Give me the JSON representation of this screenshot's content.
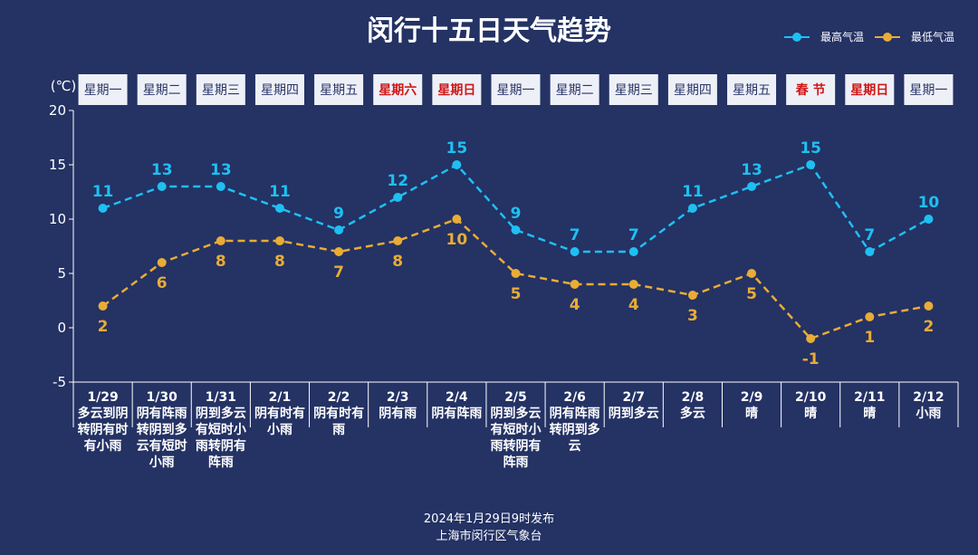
{
  "chart_data": {
    "type": "line",
    "title": "闵行十五日天气趋势",
    "unit_label": "(℃)",
    "ylim": [
      -5,
      20
    ],
    "yticks": [
      -5,
      0,
      5,
      10,
      15,
      20
    ],
    "legend_position": "top-right",
    "weekdays": [
      "星期一",
      "星期二",
      "星期三",
      "星期四",
      "星期五",
      "星期六",
      "星期日",
      "星期一",
      "星期二",
      "星期三",
      "星期四",
      "星期五",
      "春 节",
      "星期日",
      "星期一"
    ],
    "weekday_highlight": [
      false,
      false,
      false,
      false,
      false,
      true,
      true,
      false,
      false,
      false,
      false,
      false,
      true,
      true,
      false
    ],
    "dates": [
      "1/29",
      "1/30",
      "1/31",
      "2/1",
      "2/2",
      "2/3",
      "2/4",
      "2/5",
      "2/6",
      "2/7",
      "2/8",
      "2/9",
      "2/10",
      "2/11",
      "2/12"
    ],
    "descriptions": [
      "多云到阴转阴有时有小雨",
      "阴有阵雨转阴到多云有短时小雨",
      "阴到多云有短时小雨转阴有阵雨",
      "阴有时有小雨",
      "阴有时有雨",
      "阴有雨",
      "阴有阵雨",
      "阴到多云有短时小雨转阴有阵雨",
      "阴有阵雨转阴到多云",
      "阴到多云",
      "多云",
      "晴",
      "晴",
      "晴",
      "小雨"
    ],
    "series": [
      {
        "name": "最高气温",
        "color": "#1ec0f2",
        "values": [
          11,
          13,
          13,
          11,
          9,
          12,
          15,
          9,
          7,
          7,
          11,
          13,
          15,
          7,
          10
        ]
      },
      {
        "name": "最低气温",
        "color": "#e9ac36",
        "values": [
          2,
          6,
          8,
          8,
          7,
          8,
          10,
          5,
          4,
          4,
          3,
          5,
          -1,
          1,
          2
        ]
      }
    ],
    "colors": {
      "highlight_text": "#d01616",
      "normal_text": "#2a3566",
      "axis": "#ffffff"
    }
  },
  "footer": {
    "line1": "2024年1月29日9时发布",
    "line2": "上海市闵行区气象台"
  }
}
